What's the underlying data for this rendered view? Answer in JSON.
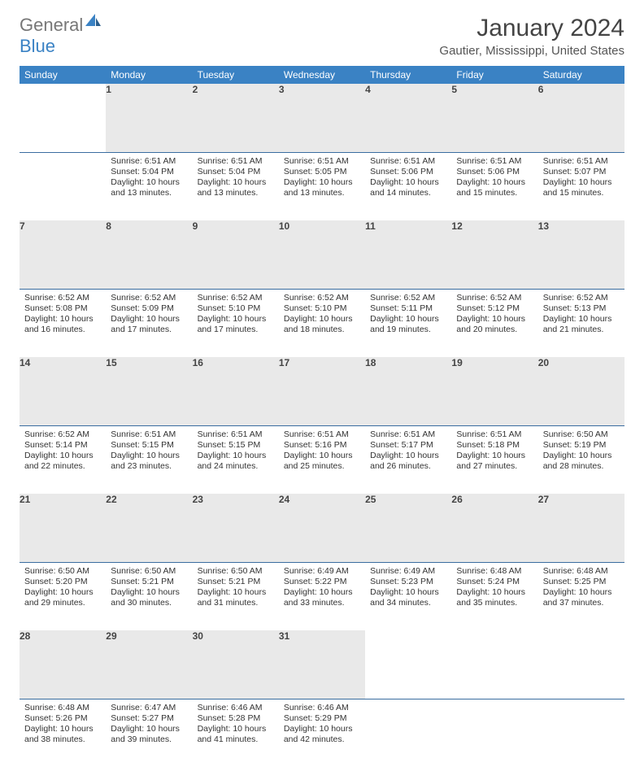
{
  "brand": {
    "part1": "General",
    "part2": "Blue"
  },
  "title": "January 2024",
  "location": "Gautier, Mississippi, United States",
  "theme": {
    "header_bg": "#3a82c4",
    "header_fg": "#ffffff",
    "daynum_bg": "#e9e9e9",
    "daynum_border": "#3a6da0",
    "text": "#333333",
    "title_color": "#444444"
  },
  "weekdays": [
    "Sunday",
    "Monday",
    "Tuesday",
    "Wednesday",
    "Thursday",
    "Friday",
    "Saturday"
  ],
  "weeks": [
    [
      null,
      {
        "n": "1",
        "sr": "6:51 AM",
        "ss": "5:04 PM",
        "dl": "10 hours and 13 minutes."
      },
      {
        "n": "2",
        "sr": "6:51 AM",
        "ss": "5:04 PM",
        "dl": "10 hours and 13 minutes."
      },
      {
        "n": "3",
        "sr": "6:51 AM",
        "ss": "5:05 PM",
        "dl": "10 hours and 13 minutes."
      },
      {
        "n": "4",
        "sr": "6:51 AM",
        "ss": "5:06 PM",
        "dl": "10 hours and 14 minutes."
      },
      {
        "n": "5",
        "sr": "6:51 AM",
        "ss": "5:06 PM",
        "dl": "10 hours and 15 minutes."
      },
      {
        "n": "6",
        "sr": "6:51 AM",
        "ss": "5:07 PM",
        "dl": "10 hours and 15 minutes."
      }
    ],
    [
      {
        "n": "7",
        "sr": "6:52 AM",
        "ss": "5:08 PM",
        "dl": "10 hours and 16 minutes."
      },
      {
        "n": "8",
        "sr": "6:52 AM",
        "ss": "5:09 PM",
        "dl": "10 hours and 17 minutes."
      },
      {
        "n": "9",
        "sr": "6:52 AM",
        "ss": "5:10 PM",
        "dl": "10 hours and 17 minutes."
      },
      {
        "n": "10",
        "sr": "6:52 AM",
        "ss": "5:10 PM",
        "dl": "10 hours and 18 minutes."
      },
      {
        "n": "11",
        "sr": "6:52 AM",
        "ss": "5:11 PM",
        "dl": "10 hours and 19 minutes."
      },
      {
        "n": "12",
        "sr": "6:52 AM",
        "ss": "5:12 PM",
        "dl": "10 hours and 20 minutes."
      },
      {
        "n": "13",
        "sr": "6:52 AM",
        "ss": "5:13 PM",
        "dl": "10 hours and 21 minutes."
      }
    ],
    [
      {
        "n": "14",
        "sr": "6:52 AM",
        "ss": "5:14 PM",
        "dl": "10 hours and 22 minutes."
      },
      {
        "n": "15",
        "sr": "6:51 AM",
        "ss": "5:15 PM",
        "dl": "10 hours and 23 minutes."
      },
      {
        "n": "16",
        "sr": "6:51 AM",
        "ss": "5:15 PM",
        "dl": "10 hours and 24 minutes."
      },
      {
        "n": "17",
        "sr": "6:51 AM",
        "ss": "5:16 PM",
        "dl": "10 hours and 25 minutes."
      },
      {
        "n": "18",
        "sr": "6:51 AM",
        "ss": "5:17 PM",
        "dl": "10 hours and 26 minutes."
      },
      {
        "n": "19",
        "sr": "6:51 AM",
        "ss": "5:18 PM",
        "dl": "10 hours and 27 minutes."
      },
      {
        "n": "20",
        "sr": "6:50 AM",
        "ss": "5:19 PM",
        "dl": "10 hours and 28 minutes."
      }
    ],
    [
      {
        "n": "21",
        "sr": "6:50 AM",
        "ss": "5:20 PM",
        "dl": "10 hours and 29 minutes."
      },
      {
        "n": "22",
        "sr": "6:50 AM",
        "ss": "5:21 PM",
        "dl": "10 hours and 30 minutes."
      },
      {
        "n": "23",
        "sr": "6:50 AM",
        "ss": "5:21 PM",
        "dl": "10 hours and 31 minutes."
      },
      {
        "n": "24",
        "sr": "6:49 AM",
        "ss": "5:22 PM",
        "dl": "10 hours and 33 minutes."
      },
      {
        "n": "25",
        "sr": "6:49 AM",
        "ss": "5:23 PM",
        "dl": "10 hours and 34 minutes."
      },
      {
        "n": "26",
        "sr": "6:48 AM",
        "ss": "5:24 PM",
        "dl": "10 hours and 35 minutes."
      },
      {
        "n": "27",
        "sr": "6:48 AM",
        "ss": "5:25 PM",
        "dl": "10 hours and 37 minutes."
      }
    ],
    [
      {
        "n": "28",
        "sr": "6:48 AM",
        "ss": "5:26 PM",
        "dl": "10 hours and 38 minutes."
      },
      {
        "n": "29",
        "sr": "6:47 AM",
        "ss": "5:27 PM",
        "dl": "10 hours and 39 minutes."
      },
      {
        "n": "30",
        "sr": "6:46 AM",
        "ss": "5:28 PM",
        "dl": "10 hours and 41 minutes."
      },
      {
        "n": "31",
        "sr": "6:46 AM",
        "ss": "5:29 PM",
        "dl": "10 hours and 42 minutes."
      },
      null,
      null,
      null
    ]
  ],
  "labels": {
    "sunrise": "Sunrise:",
    "sunset": "Sunset:",
    "daylight": "Daylight:"
  }
}
